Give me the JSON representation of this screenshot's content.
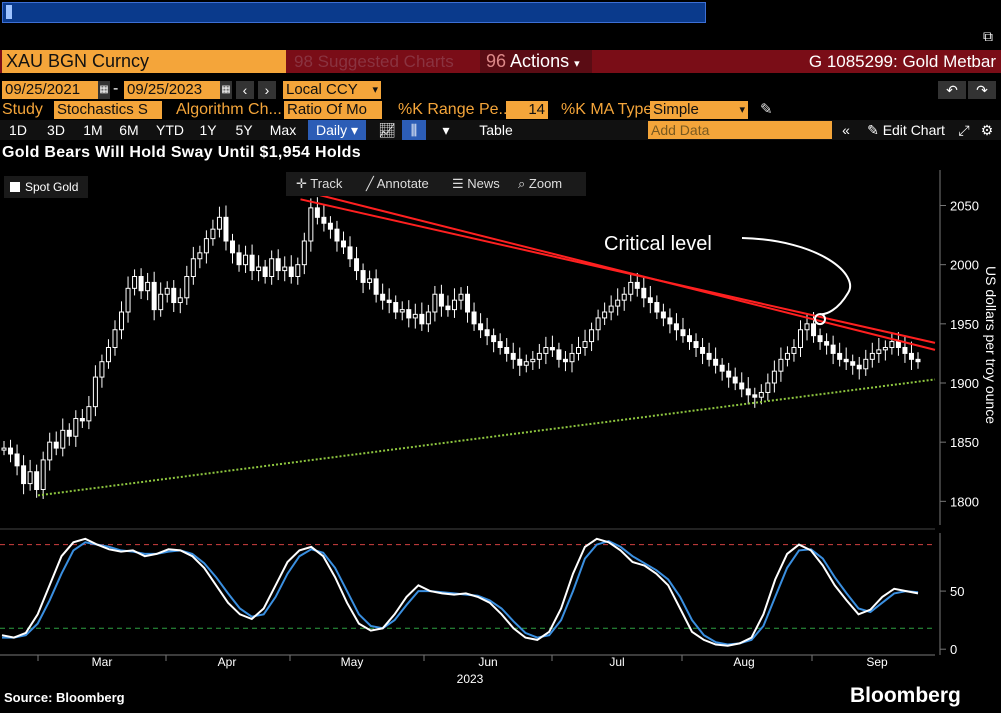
{
  "toolbar": {
    "ticker": "XAU BGN Curncy",
    "suggested": "Suggested Charts",
    "suggested_num": "98",
    "actions": "Actions",
    "actions_num": "96",
    "security": "G 1085299: Gold Metbar",
    "start_date": "09/25/2021",
    "end_date": "09/25/2023",
    "date_sep": "-",
    "currency": "Local CCY",
    "study_label": "Study",
    "study_value": "Stochastics S",
    "algo_label": "Algorithm Ch...",
    "algo_value": "Ratio Of Mo",
    "k_range_label": "%K Range Pe...",
    "k_range_value": "14",
    "k_ma_label": "%K MA Type",
    "k_ma_value": "Simple",
    "periods": [
      "1D",
      "3D",
      "1M",
      "6M",
      "YTD",
      "1Y",
      "5Y",
      "Max"
    ],
    "frequency": "Daily",
    "table_label": "Table",
    "add_data_placeholder": "Add Data",
    "edit_chart": "Edit Chart"
  },
  "chart_tools": [
    "Track",
    "Annotate",
    "News",
    "Zoom"
  ],
  "legend_label": "Spot Gold",
  "source": "Source: Bloomberg",
  "brand": "Bloomberg",
  "colors": {
    "trend_down": "#ff2020",
    "support": "#8ec63f",
    "stoch_k": "#ffffff",
    "stoch_d": "#3a8fe0",
    "overbought": "#d04040",
    "oversold": "#2ea043"
  },
  "chart_data": {
    "type": "line",
    "title": "Gold Bears Will Hold Sway Until $1,954 Holds",
    "ylabel": "US dollars per troy ounce",
    "ylim": [
      1780,
      2080
    ],
    "yticks": [
      1800,
      1850,
      1900,
      1950,
      2000,
      2050
    ],
    "x_month_labels": [
      "Mar",
      "Apr",
      "May",
      "Jun",
      "Jul",
      "Aug",
      "Sep"
    ],
    "x_year_label": "2023",
    "annotation": "Critical level",
    "annotation_value": 1954,
    "series": [
      {
        "name": "Spot Gold",
        "values": [
          1845,
          1840,
          1830,
          1815,
          1825,
          1810,
          1835,
          1850,
          1845,
          1860,
          1855,
          1870,
          1868,
          1880,
          1905,
          1918,
          1930,
          1945,
          1960,
          1980,
          1990,
          1978,
          1985,
          1962,
          1975,
          1980,
          1968,
          1972,
          1990,
          2005,
          2010,
          2022,
          2030,
          2040,
          2020,
          2010,
          2000,
          2008,
          1995,
          1998,
          1990,
          2005,
          1995,
          1998,
          1990,
          2000,
          2020,
          2048,
          2040,
          2035,
          2030,
          2020,
          2015,
          2005,
          1995,
          1985,
          1988,
          1975,
          1970,
          1968,
          1960,
          1962,
          1955,
          1958,
          1950,
          1960,
          1975,
          1965,
          1962,
          1970,
          1975,
          1960,
          1950,
          1945,
          1940,
          1935,
          1930,
          1925,
          1920,
          1915,
          1918,
          1920,
          1925,
          1930,
          1928,
          1920,
          1918,
          1925,
          1930,
          1935,
          1945,
          1955,
          1960,
          1965,
          1970,
          1975,
          1985,
          1980,
          1972,
          1968,
          1960,
          1955,
          1950,
          1945,
          1940,
          1935,
          1930,
          1925,
          1920,
          1915,
          1910,
          1905,
          1900,
          1895,
          1890,
          1888,
          1892,
          1900,
          1910,
          1920,
          1925,
          1930,
          1945,
          1950,
          1940,
          1935,
          1932,
          1925,
          1920,
          1918,
          1915,
          1912,
          1920,
          1925,
          1928,
          1930,
          1935,
          1930,
          1925,
          1920,
          1918
        ]
      },
      {
        "name": "Resistance",
        "values": [
          [
            0.3,
            2062
          ],
          [
            1.0,
            1928
          ]
        ]
      },
      {
        "name": "Support",
        "values": [
          [
            0.0,
            1805
          ],
          [
            1.0,
            1903
          ]
        ]
      }
    ],
    "stochastic": {
      "ylim": [
        -5,
        100
      ],
      "yticks": [
        0,
        50
      ],
      "overbought": 90,
      "oversold": 18,
      "k": [
        12,
        10,
        14,
        30,
        55,
        80,
        92,
        95,
        90,
        86,
        84,
        85,
        80,
        82,
        86,
        85,
        80,
        70,
        55,
        40,
        30,
        26,
        35,
        55,
        75,
        85,
        88,
        80,
        62,
        40,
        22,
        16,
        18,
        30,
        45,
        55,
        50,
        48,
        47,
        48,
        45,
        40,
        30,
        18,
        10,
        8,
        15,
        35,
        65,
        88,
        95,
        92,
        85,
        75,
        72,
        65,
        55,
        35,
        15,
        8,
        4,
        3,
        5,
        10,
        30,
        60,
        82,
        90,
        85,
        72,
        55,
        42,
        30,
        34,
        45,
        52,
        50,
        48
      ],
      "d": [
        10,
        10,
        12,
        22,
        42,
        65,
        85,
        92,
        90,
        88,
        85,
        84,
        82,
        82,
        84,
        85,
        82,
        74,
        62,
        48,
        35,
        28,
        30,
        45,
        65,
        80,
        86,
        83,
        70,
        50,
        30,
        20,
        18,
        25,
        38,
        50,
        50,
        49,
        48,
        47,
        46,
        42,
        35,
        24,
        14,
        10,
        12,
        25,
        50,
        78,
        90,
        93,
        88,
        80,
        74,
        68,
        60,
        45,
        25,
        12,
        6,
        4,
        5,
        8,
        20,
        45,
        70,
        85,
        86,
        78,
        62,
        48,
        35,
        32,
        40,
        48,
        50,
        49
      ]
    }
  }
}
